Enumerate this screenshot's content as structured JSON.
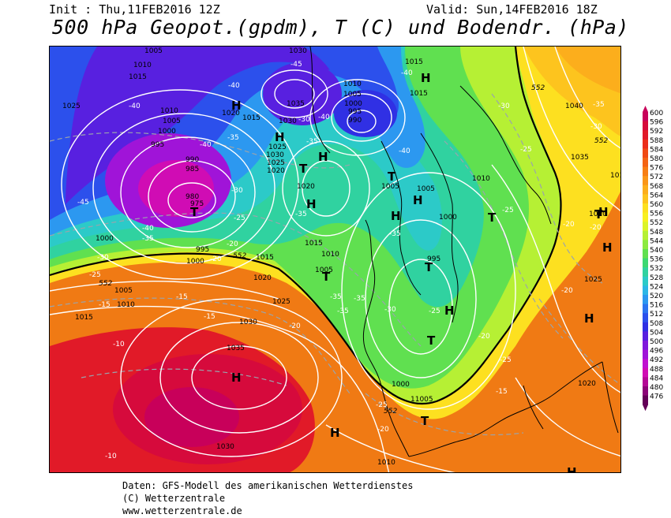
{
  "header": {
    "init": "Init : Thu,11FEB2016 12Z",
    "valid": "Valid: Sun,14FEB2016 18Z",
    "title": "500 hPa Geopot.(gpdm), T (C) und Bodendr. (hPa)"
  },
  "footer": {
    "line1": "Daten: GFS-Modell des amerikanischen Wetterdienstes",
    "line2": "(C) Wetterzentrale",
    "line3": "www.wetterzentrale.de"
  },
  "legend": {
    "levels": [
      "600",
      "596",
      "592",
      "588",
      "584",
      "580",
      "576",
      "572",
      "568",
      "564",
      "560",
      "556",
      "552",
      "548",
      "544",
      "540",
      "536",
      "532",
      "528",
      "524",
      "520",
      "516",
      "512",
      "508",
      "504",
      "500",
      "496",
      "492",
      "488",
      "484",
      "480",
      "476"
    ],
    "colors": [
      "#c8005a",
      "#d60a3c",
      "#e11a28",
      "#eb2e1a",
      "#f04a14",
      "#f46414",
      "#f77e14",
      "#fa9618",
      "#fcae1c",
      "#fdc41e",
      "#fde020",
      "#f8f020",
      "#dcf428",
      "#b6f034",
      "#8cea40",
      "#60e050",
      "#3cd872",
      "#30d2a0",
      "#2ccac8",
      "#2cb6e6",
      "#2c98f0",
      "#2c74f0",
      "#2c50ec",
      "#3030e4",
      "#5820e0",
      "#8018dc",
      "#a014d8",
      "#c010d0",
      "#d00cb4",
      "#b40896",
      "#8c0478",
      "#640058"
    ]
  },
  "map": {
    "pressure_highs": [
      "H",
      "H",
      "H",
      "H",
      "H",
      "H",
      "H",
      "H",
      "H",
      "H",
      "H",
      "H",
      "H",
      "H"
    ],
    "pressure_lows": [
      "T",
      "T",
      "T",
      "T",
      "T",
      "T",
      "T",
      "T",
      "T"
    ],
    "isobar_labels": [
      "1005",
      "1010",
      "1015",
      "1025",
      "1010",
      "1005",
      "1000",
      "995",
      "990",
      "985",
      "980",
      "975",
      "1000",
      "995",
      "1000",
      "1005",
      "1010",
      "1015",
      "1020",
      "1025",
      "1030",
      "1035",
      "1040",
      "1030",
      "1035",
      "1030",
      "1025",
      "1020",
      "1020",
      "1015",
      "1010",
      "1005",
      "1000",
      "995",
      "1010",
      "1005",
      "1000",
      "995",
      "990",
      "1015",
      "1005",
      "1000",
      "1005",
      "1010",
      "1015",
      "1020",
      "1025",
      "1030",
      "1035",
      "1020",
      "1025",
      "1030",
      "1010",
      "1005",
      "1000",
      "1005",
      "1040",
      "1035",
      "1015",
      "1010",
      "1010",
      "1020",
      "1025",
      "1030",
      "1020",
      "1005",
      "1000",
      "1005"
    ],
    "temp_labels": [
      "-40",
      "-40",
      "-40",
      "-40",
      "-45",
      "-40",
      "-40",
      "-35",
      "-35",
      "-30",
      "-30",
      "-25",
      "-25",
      "-20",
      "-20",
      "-15",
      "-15",
      "-15",
      "-10",
      "-10",
      "-30",
      "-35",
      "-40",
      "-45",
      "-40",
      "-35",
      "-35",
      "-35",
      "-30",
      "-30",
      "-35",
      "-30",
      "-25",
      "-25",
      "-20",
      "-20",
      "-35",
      "-25",
      "-20",
      "-20",
      "-20",
      "-15",
      "-15",
      "-20",
      "-25",
      "-20"
    ],
    "contour_552": [
      "552",
      "552",
      "552",
      "552",
      "552"
    ]
  }
}
